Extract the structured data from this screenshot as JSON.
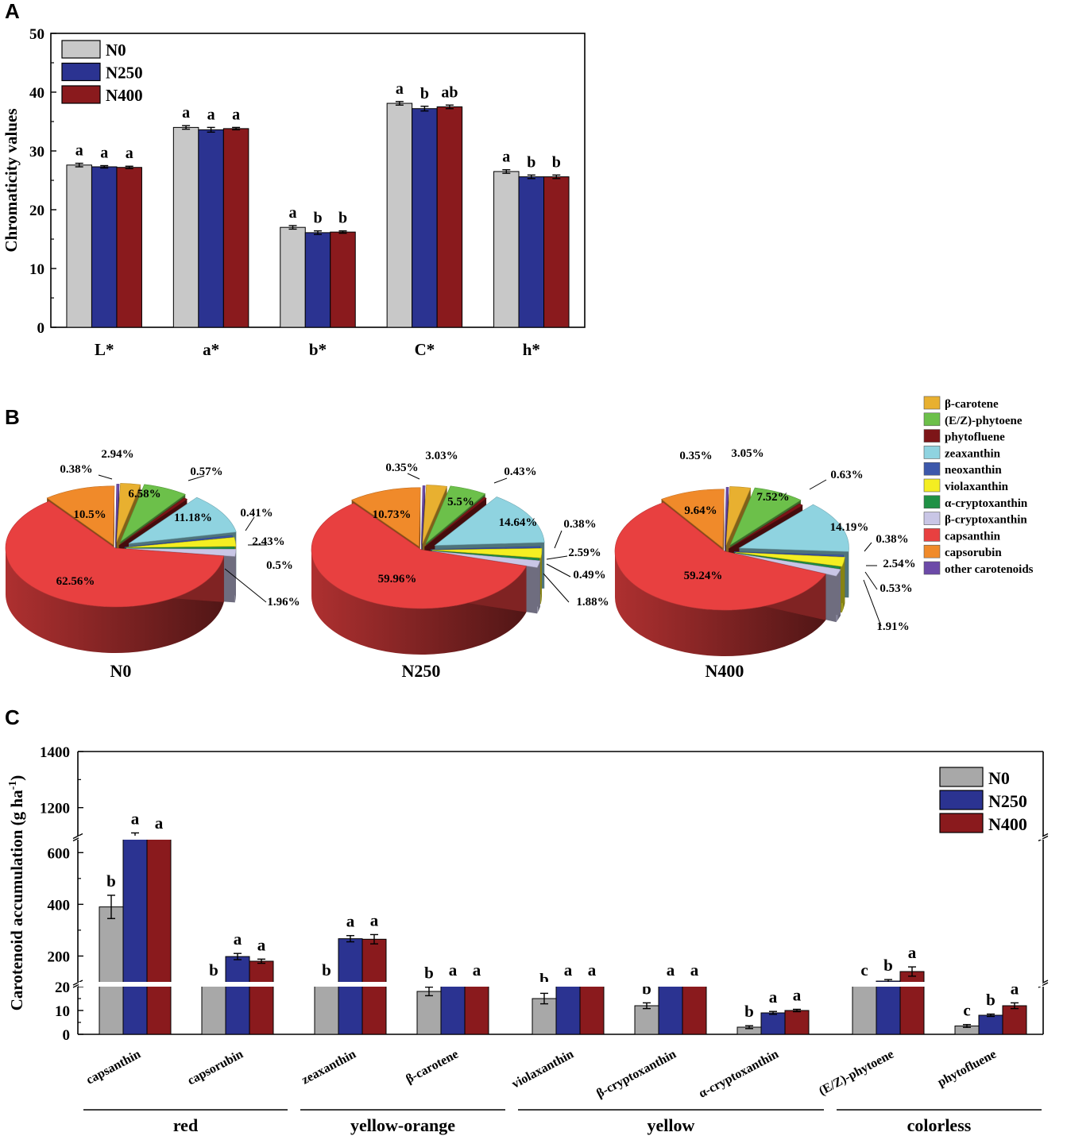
{
  "chart_data": [
    {
      "panel": "A",
      "type": "bar",
      "ylabel": "Chromaticity values",
      "ylim": [
        0,
        50
      ],
      "yticks": [
        0,
        10,
        20,
        30,
        40,
        50
      ],
      "categories": [
        "L*",
        "a*",
        "b*",
        "C*",
        "h*"
      ],
      "series": [
        {
          "name": "N0",
          "color": "#c8c8c8",
          "values": [
            27.6,
            34.0,
            17.0,
            38.1,
            26.5
          ],
          "errors": [
            0.3,
            0.3,
            0.3,
            0.3,
            0.3
          ],
          "letters": [
            "a",
            "a",
            "a",
            "a",
            "a"
          ]
        },
        {
          "name": "N250",
          "color": "#2b3391",
          "values": [
            27.3,
            33.6,
            16.1,
            37.2,
            25.6
          ],
          "errors": [
            0.2,
            0.4,
            0.3,
            0.4,
            0.3
          ],
          "letters": [
            "a",
            "a",
            "b",
            "b",
            "b"
          ]
        },
        {
          "name": "N400",
          "color": "#8a1a1d",
          "values": [
            27.2,
            33.8,
            16.2,
            37.5,
            25.6
          ],
          "errors": [
            0.2,
            0.2,
            0.2,
            0.3,
            0.3
          ],
          "letters": [
            "a",
            "a",
            "b",
            "ab",
            "b"
          ]
        }
      ],
      "legend_position": "top-left"
    },
    {
      "panel": "B",
      "type": "pie",
      "legend": [
        {
          "name": "β-carotene",
          "color": "#e8b030"
        },
        {
          "name": "(E/Z)-phytoene",
          "color": "#6cc04a"
        },
        {
          "name": "phytofluene",
          "color": "#7d1518"
        },
        {
          "name": "zeaxanthin",
          "color": "#8fd3e0"
        },
        {
          "name": "neoxanthin",
          "color": "#3c58ab"
        },
        {
          "name": "violaxanthin",
          "color": "#f4ee22"
        },
        {
          "name": "α-cryptoxanthin",
          "color": "#1f9145"
        },
        {
          "name": "β-cryptoxanthin",
          "color": "#c9c6e6"
        },
        {
          "name": "capsanthin",
          "color": "#e84040"
        },
        {
          "name": "capsorubin",
          "color": "#f08a2a"
        },
        {
          "name": "other carotenoids",
          "color": "#6c4aa8"
        }
      ],
      "pies": [
        {
          "label": "N0",
          "values": [
            2.94,
            6.58,
            0.57,
            11.18,
            0.41,
            2.43,
            0.5,
            1.96,
            62.56,
            10.5,
            0.38
          ],
          "labels": [
            "2.94%",
            "6.58%",
            "0.57%",
            "11.18%",
            "0.41%",
            "2.43%",
            "0.5%",
            "1.96%",
            "62.56%",
            "10.5%",
            "0.38%"
          ]
        },
        {
          "label": "N250",
          "values": [
            3.03,
            5.5,
            0.43,
            14.64,
            0.38,
            2.59,
            0.49,
            1.88,
            59.96,
            10.73,
            0.35
          ],
          "labels": [
            "3.03%",
            "5.5%",
            "0.43%",
            "14.64%",
            "0.38%",
            "2.59%",
            "0.49%",
            "1.88%",
            "59.96%",
            "10.73%",
            "0.35%"
          ]
        },
        {
          "label": "N400",
          "values": [
            3.05,
            7.52,
            0.63,
            14.19,
            0.38,
            2.54,
            0.53,
            1.91,
            59.24,
            9.64,
            0.35
          ],
          "labels": [
            "3.05%",
            "7.52%",
            "0.63%",
            "14.19%",
            "0.38%",
            "2.54%",
            "0.53%",
            "1.91%",
            "59.24%",
            "9.64%",
            "0.35%"
          ]
        }
      ]
    },
    {
      "panel": "C",
      "type": "bar",
      "ylabel": "Carotenoid accumulation (g ha",
      "ylabel_sup": "-1",
      "ylabel_end": ")",
      "axis_breaks": [
        [
          20,
          100
        ],
        [
          600,
          1100
        ]
      ],
      "yticks": [
        0,
        10,
        20,
        200,
        400,
        600,
        1200,
        1400
      ],
      "categories": [
        "capsanthin",
        "capsorubin",
        "zeaxanthin",
        "β-carotene",
        "violaxanthin",
        "β-cryptoxanthin",
        "α-cryptoxanthin",
        "(E/Z)-phytoene",
        "phytofluene"
      ],
      "series": [
        {
          "name": "N0",
          "color": "#a8a8a8",
          "values": [
            390,
            70,
            72,
            18,
            15,
            12,
            3,
            50,
            3.5
          ],
          "errors": [
            45,
            10,
            5,
            1.8,
            2.2,
            1.2,
            0.6,
            6,
            0.6
          ],
          "letters": [
            "b",
            "b",
            "b",
            "b",
            "b",
            "b",
            "b",
            "c",
            "c"
          ]
        },
        {
          "name": "N250",
          "color": "#2b3391",
          "values": [
            1055,
            198,
            267,
            58,
            53,
            45,
            9,
            103,
            8
          ],
          "errors": [
            55,
            12,
            12,
            2,
            2,
            1.5,
            0.6,
            6,
            0.5
          ],
          "letters": [
            "a",
            "a",
            "a",
            "a",
            "a",
            "a",
            "a",
            "b",
            "b"
          ]
        },
        {
          "name": "N400",
          "color": "#8a1a1d",
          "values": [
            1060,
            180,
            265,
            59,
            52,
            45,
            10,
            140,
            12
          ],
          "errors": [
            35,
            8,
            18,
            2,
            2,
            1.5,
            0.5,
            18,
            1.2
          ],
          "letters": [
            "a",
            "a",
            "a",
            "a",
            "a",
            "a",
            "a",
            "a",
            "a"
          ]
        }
      ],
      "groups": [
        {
          "label": "red",
          "categories": [
            "capsanthin",
            "capsorubin"
          ]
        },
        {
          "label": "yellow-orange",
          "categories": [
            "zeaxanthin",
            "β-carotene"
          ]
        },
        {
          "label": "yellow",
          "categories": [
            "violaxanthin",
            "β-cryptoxanthin",
            "α-cryptoxanthin"
          ]
        },
        {
          "label": "colorless",
          "categories": [
            "(E/Z)-phytoene",
            "phytofluene"
          ]
        }
      ],
      "legend_position": "top-right"
    }
  ],
  "panel_labels": [
    "A",
    "B",
    "C"
  ]
}
